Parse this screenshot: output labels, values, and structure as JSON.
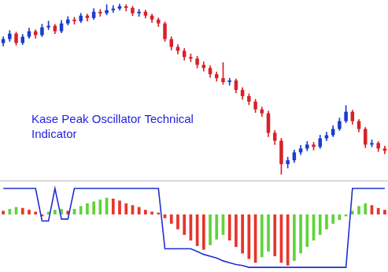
{
  "chart_data": [
    {
      "type": "candlestick",
      "open": [
        180,
        185,
        192,
        180,
        188,
        195,
        190,
        200,
        202,
        195,
        205,
        210,
        208,
        215,
        212,
        220,
        218,
        222,
        224,
        227,
        225,
        218,
        220,
        215,
        210,
        205,
        185,
        175,
        170,
        162,
        160,
        152,
        148,
        140,
        135,
        130,
        132,
        120,
        112,
        105,
        95,
        90,
        65,
        55,
        25,
        30,
        40,
        45,
        50,
        47,
        58,
        62,
        70,
        80,
        92,
        80,
        70,
        50,
        52,
        45
      ],
      "high": [
        188,
        196,
        194,
        191,
        199,
        197,
        204,
        208,
        204,
        209,
        214,
        213,
        218,
        217,
        224,
        223,
        229,
        228,
        230,
        229,
        227,
        223,
        222,
        217,
        212,
        207,
        188,
        178,
        173,
        166,
        163,
        156,
        151,
        143,
        155,
        135,
        134,
        123,
        115,
        108,
        98,
        93,
        68,
        58,
        34,
        43,
        49,
        54,
        53,
        62,
        66,
        74,
        84,
        100,
        94,
        82,
        72,
        56,
        54,
        48
      ],
      "low": [
        176,
        182,
        177,
        178,
        186,
        186,
        188,
        197,
        192,
        193,
        203,
        204,
        206,
        208,
        210,
        214,
        216,
        219,
        222,
        221,
        215,
        214,
        212,
        206,
        201,
        182,
        171,
        166,
        158,
        156,
        148,
        144,
        136,
        131,
        127,
        126,
        116,
        108,
        101,
        91,
        86,
        60,
        50,
        12,
        20,
        27,
        37,
        42,
        43,
        45,
        55,
        60,
        68,
        78,
        76,
        66,
        46,
        47,
        41,
        38
      ],
      "close": [
        185,
        192,
        180,
        188,
        195,
        190,
        200,
        202,
        195,
        205,
        210,
        208,
        215,
        212,
        220,
        218,
        222,
        224,
        227,
        225,
        218,
        220,
        215,
        210,
        205,
        185,
        175,
        170,
        162,
        160,
        152,
        148,
        140,
        135,
        130,
        132,
        120,
        112,
        105,
        95,
        90,
        65,
        55,
        25,
        30,
        40,
        45,
        50,
        47,
        58,
        62,
        70,
        80,
        92,
        80,
        70,
        50,
        52,
        45,
        42
      ],
      "colors": [
        "#1a3ccf",
        "#1a3ccf",
        "#d8212a",
        "#1a3ccf",
        "#1a3ccf",
        "#d8212a",
        "#1a3ccf",
        "#1a3ccf",
        "#d8212a",
        "#1a3ccf",
        "#1a3ccf",
        "#d8212a",
        "#1a3ccf",
        "#d8212a",
        "#1a3ccf",
        "#d8212a",
        "#1a3ccf",
        "#1a3ccf",
        "#1a3ccf",
        "#d8212a",
        "#d8212a",
        "#1a3ccf",
        "#d8212a",
        "#d8212a",
        "#d8212a",
        "#d8212a",
        "#d8212a",
        "#d8212a",
        "#d8212a",
        "#d8212a",
        "#d8212a",
        "#d8212a",
        "#d8212a",
        "#d8212a",
        "#d8212a",
        "#1a3ccf",
        "#d8212a",
        "#d8212a",
        "#d8212a",
        "#d8212a",
        "#d8212a",
        "#d8212a",
        "#d8212a",
        "#d8212a",
        "#1a3ccf",
        "#1a3ccf",
        "#1a3ccf",
        "#1a3ccf",
        "#d8212a",
        "#1a3ccf",
        "#1a3ccf",
        "#1a3ccf",
        "#1a3ccf",
        "#1a3ccf",
        "#d8212a",
        "#d8212a",
        "#d8212a",
        "#1a3ccf",
        "#d8212a",
        "#d8212a"
      ],
      "ylim": [
        5,
        235
      ],
      "grid": false,
      "tick_labels": false,
      "annotations": [
        {
          "text": [
            "Kase Peak Oscillator Technical",
            "Indicator"
          ],
          "color": "#2222e0"
        }
      ]
    },
    {
      "type": "bar",
      "series": [
        {
          "type": "bar",
          "values": [
            4,
            6,
            8,
            7,
            5,
            3,
            -2,
            3,
            5,
            6,
            4,
            6,
            9,
            12,
            14,
            16,
            18,
            17,
            15,
            12,
            10,
            8,
            5,
            3,
            2,
            -4,
            -10,
            -16,
            -22,
            -28,
            -34,
            -38,
            -33,
            -27,
            -22,
            -28,
            -35,
            -42,
            -48,
            -52,
            -46,
            -40,
            -45,
            -52,
            -55,
            -50,
            -42,
            -35,
            -28,
            -22,
            -16,
            -10,
            -6,
            -2,
            4,
            9,
            12,
            10,
            7,
            5
          ],
          "colors": [
            "#e8342c",
            "#5fd43a",
            "#5fd43a",
            "#e8342c",
            "#e8342c",
            "#e8342c",
            "#e8342c",
            "#5fd43a",
            "#5fd43a",
            "#5fd43a",
            "#e8342c",
            "#5fd43a",
            "#5fd43a",
            "#5fd43a",
            "#5fd43a",
            "#5fd43a",
            "#5fd43a",
            "#e8342c",
            "#e8342c",
            "#e8342c",
            "#e8342c",
            "#e8342c",
            "#e8342c",
            "#e8342c",
            "#e8342c",
            "#e8342c",
            "#e8342c",
            "#e8342c",
            "#e8342c",
            "#e8342c",
            "#e8342c",
            "#e8342c",
            "#5fd43a",
            "#5fd43a",
            "#5fd43a",
            "#e8342c",
            "#e8342c",
            "#e8342c",
            "#e8342c",
            "#e8342c",
            "#5fd43a",
            "#5fd43a",
            "#e8342c",
            "#e8342c",
            "#e8342c",
            "#5fd43a",
            "#5fd43a",
            "#5fd43a",
            "#5fd43a",
            "#5fd43a",
            "#5fd43a",
            "#5fd43a",
            "#5fd43a",
            "#5fd43a",
            "#5fd43a",
            "#5fd43a",
            "#5fd43a",
            "#e8342c",
            "#e8342c",
            "#e8342c"
          ]
        },
        {
          "type": "line",
          "values": [
            28,
            28,
            28,
            28,
            28,
            28,
            -7,
            -7,
            28,
            -5,
            -5,
            28,
            28,
            28,
            28,
            28,
            28,
            28,
            28,
            28,
            28,
            28,
            28,
            28,
            28,
            -37,
            -37,
            -37,
            -37,
            -37,
            -40,
            -43,
            -45,
            -47,
            -50,
            -52,
            -54,
            -55,
            -57,
            -57,
            -57,
            -57,
            -57,
            -57,
            -57,
            -57,
            -57,
            -57,
            -57,
            -57,
            -57,
            -57,
            -57,
            -57,
            28,
            28,
            28,
            28,
            28,
            28
          ],
          "color": "#1f2fd6"
        }
      ],
      "ylim": [
        -62,
        34
      ],
      "grid": false,
      "tick_labels": false
    }
  ]
}
